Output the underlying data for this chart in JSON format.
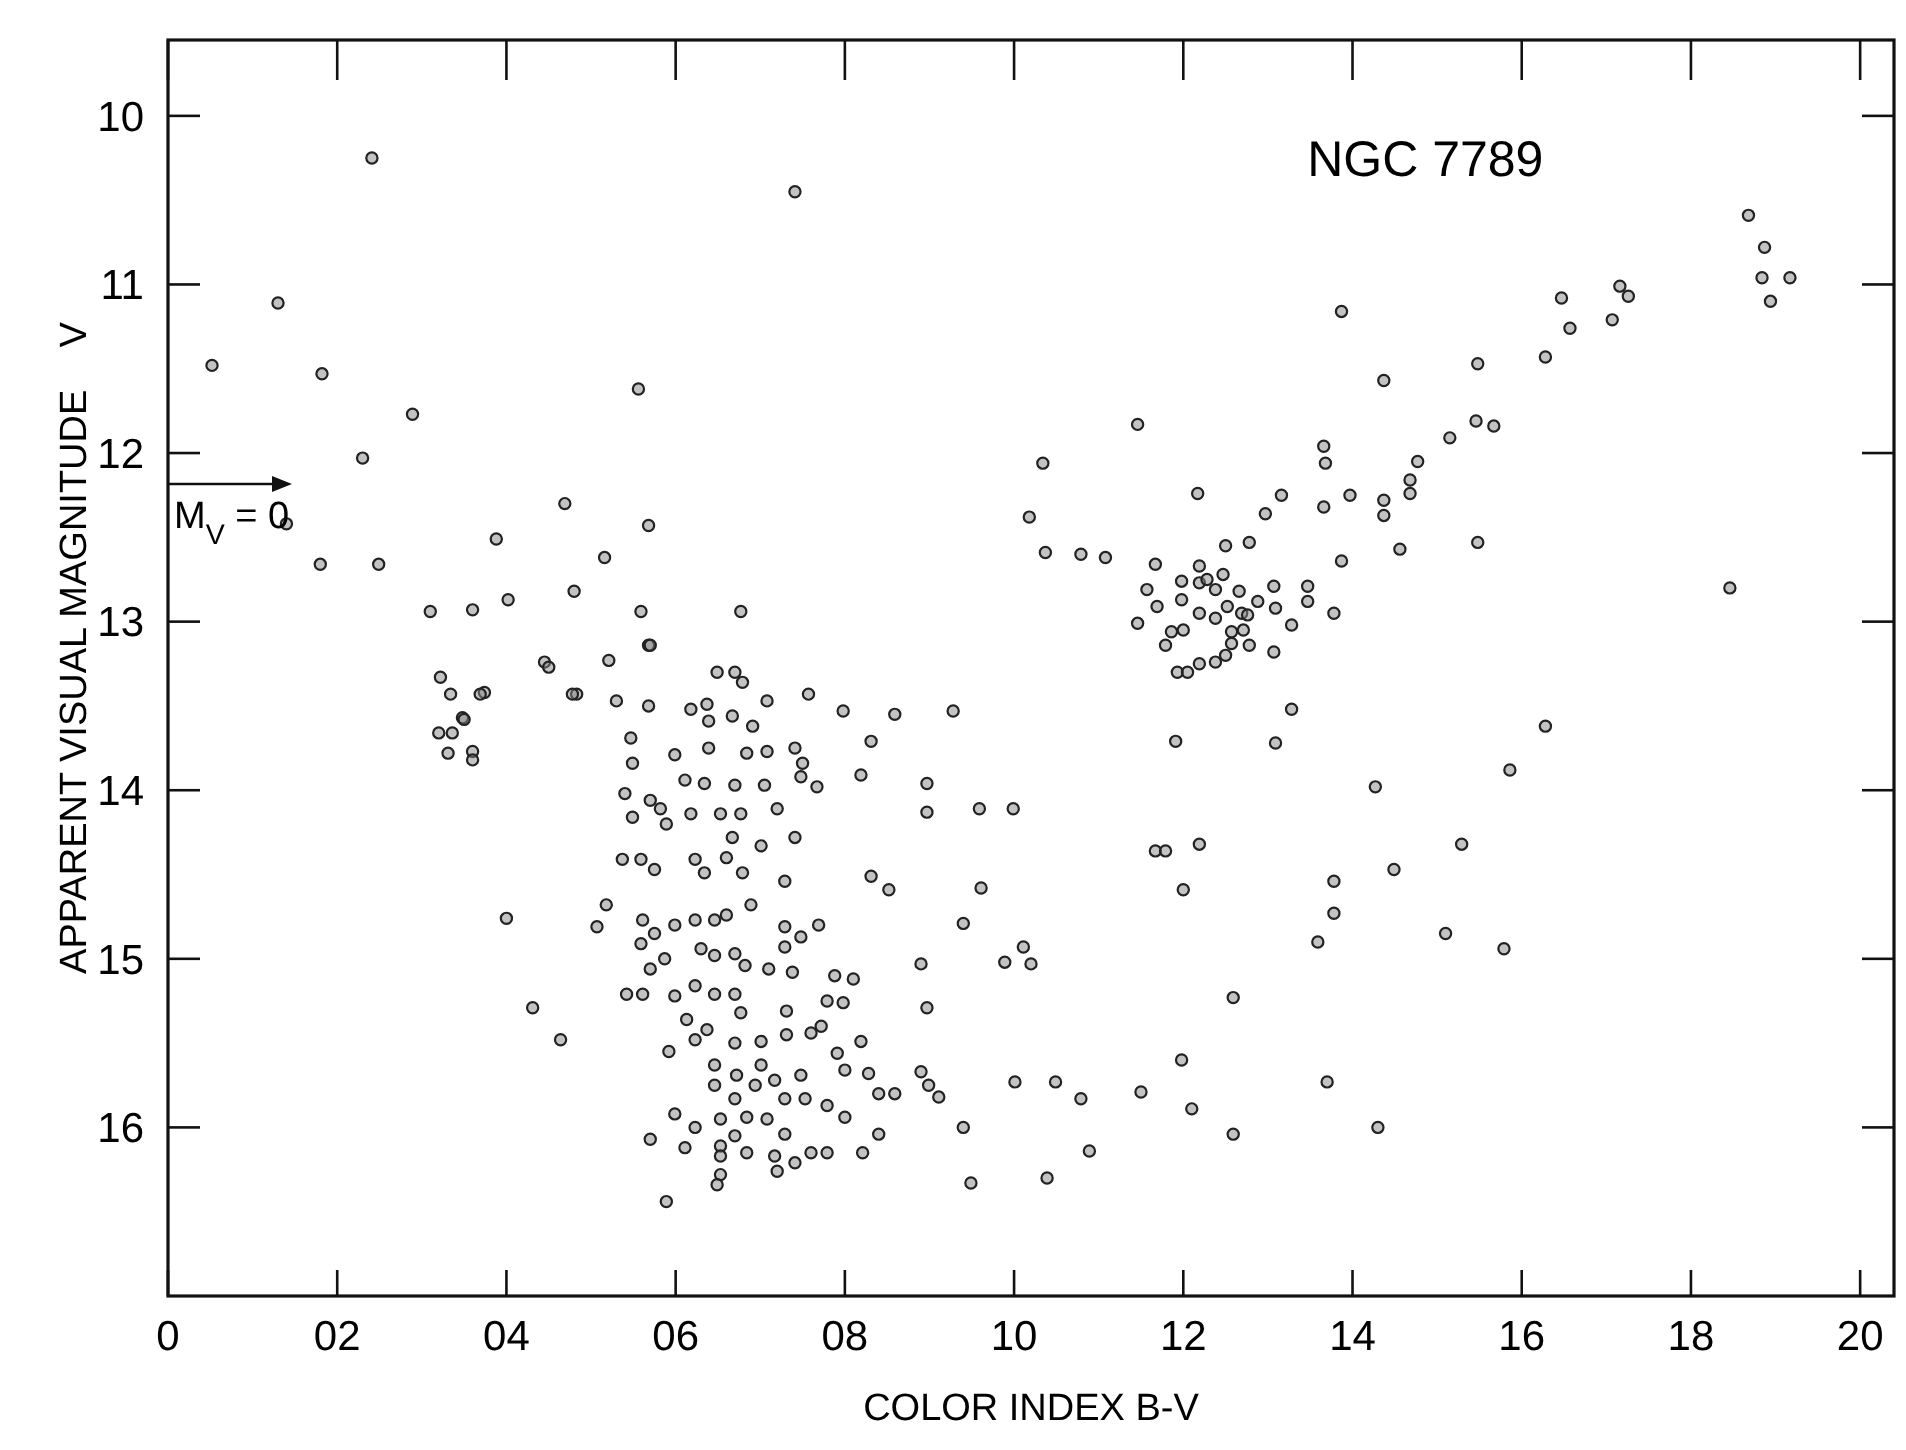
{
  "chart_data": {
    "type": "scatter",
    "xlabel": "COLOR INDEX B-V",
    "ylabel": "APPARENT VISUAL MAGNITUDE    V",
    "annotations": [
      "NGC 7789",
      "M$_{V}$ = 0"
    ],
    "xlim": [
      0,
      20.4
    ],
    "ylim": [
      17.0,
      9.55
    ],
    "xticks": [
      0,
      {
        "value": 2,
        "label": "02"
      },
      {
        "value": 4,
        "label": "04"
      },
      {
        "value": 6,
        "label": "06"
      },
      {
        "value": 8,
        "label": "08"
      },
      10,
      12,
      14,
      16,
      18,
      20
    ],
    "yticks": [
      10,
      11,
      12,
      13,
      14,
      15,
      16
    ],
    "grid": false,
    "marker": "circle",
    "series": [
      {
        "color": "#888888",
        "x": [
          0.52,
          1.3,
          1.82,
          2.41,
          2.3,
          2.89,
          1.8,
          1.4,
          2.49,
          3.1,
          3.88,
          4.02,
          3.6,
          3.22,
          3.34,
          3.74,
          3.48,
          3.6,
          3.36,
          4.45,
          4.69,
          4.8,
          5.16,
          4.83,
          5.21,
          7.41,
          5.56,
          5.68,
          6.77,
          5.59,
          5.68,
          5.7,
          4.5,
          6.49,
          6.7,
          6.79,
          3.69,
          4.78,
          5.3,
          5.68,
          6.18,
          6.37,
          6.39,
          6.67,
          6.91,
          7.08,
          7.57,
          7.98,
          8.59,
          9.28,
          3.5,
          3.2,
          3.31,
          3.6,
          5.47,
          5.49,
          5.99,
          6.39,
          6.84,
          7.08,
          7.41,
          7.5,
          8.31,
          8.19,
          7.48,
          7.67,
          6.11,
          6.34,
          6.7,
          7.05,
          5.4,
          5.7,
          5.82,
          6.18,
          6.53,
          6.77,
          7.2,
          8.97,
          8.97,
          9.59,
          5.49,
          5.89,
          7.41,
          7.01,
          6.67,
          5.37,
          5.59,
          5.75,
          6.23,
          6.34,
          6.6,
          6.79,
          7.29,
          8.31,
          8.52,
          9.61,
          4.0,
          5.07,
          5.18,
          5.61,
          5.75,
          5.99,
          6.23,
          6.46,
          6.6,
          6.89,
          7.29,
          7.48,
          7.69,
          9.4,
          5.59,
          5.87,
          6.3,
          6.46,
          6.7,
          6.82,
          7.1,
          7.29,
          7.38,
          7.88,
          8.1,
          8.9,
          5.7,
          5.42,
          5.61,
          5.99,
          6.23,
          6.46,
          6.7,
          4.31,
          4.64,
          6.13,
          6.37,
          6.77,
          7.31,
          7.79,
          7.98,
          8.97,
          6.23,
          6.7,
          7.01,
          7.31,
          7.6,
          7.72,
          7.91,
          8.19,
          5.92,
          6.46,
          6.72,
          7.01,
          7.17,
          7.48,
          8.0,
          8.28,
          8.9,
          8.99,
          9.11,
          8.59,
          8.4,
          6.46,
          6.7,
          6.94,
          7.29,
          7.53,
          7.79,
          8.0,
          5.99,
          6.23,
          6.53,
          6.84,
          7.08,
          7.29,
          6.7,
          6.53,
          6.84,
          7.17,
          7.41,
          7.6,
          7.79,
          8.21,
          8.4,
          9.4,
          5.7,
          6.11,
          6.53,
          6.53,
          6.49,
          7.2,
          5.89,
          9.49,
          13.87,
          11.46,
          10.34,
          10.18,
          10.37,
          10.79,
          11.08,
          11.67,
          12.17,
          12.5,
          12.78,
          12.97,
          13.16,
          13.66,
          13.68,
          13.66,
          13.97,
          13.87,
          14.37,
          14.37,
          14.37,
          14.56,
          14.68,
          14.68,
          14.77,
          15.15,
          15.46,
          15.67,
          15.48,
          15.48,
          16.28,
          16.47,
          16.57,
          17.07,
          17.16,
          17.26,
          18.68,
          18.87,
          18.84,
          19.17,
          18.94,
          18.46,
          11.46,
          11.57,
          11.69,
          11.79,
          11.86,
          11.98,
          11.98,
          12.0,
          11.93,
          12.05,
          12.19,
          12.19,
          12.19,
          12.19,
          12.28,
          12.38,
          12.38,
          12.38,
          12.47,
          12.5,
          12.52,
          12.57,
          12.57,
          12.66,
          12.69,
          12.71,
          12.76,
          12.78,
          12.88,
          13.07,
          13.09,
          13.07,
          13.28,
          13.47,
          13.47,
          13.78,
          13.28,
          13.09,
          11.91,
          16.28,
          15.86,
          14.27,
          9.99,
          11.67,
          11.79,
          12.19,
          12.0,
          13.78,
          14.49,
          15.29,
          13.78,
          13.59,
          15.1,
          15.79,
          10.11,
          9.89,
          10.2,
          12.59,
          11.98,
          10.01,
          10.49,
          10.79,
          11.5,
          12.1,
          13.7,
          14.3,
          12.59,
          10.89,
          10.39
        ],
        "values": [
          11.48,
          11.11,
          11.53,
          10.25,
          12.03,
          11.77,
          12.66,
          12.42,
          12.66,
          12.94,
          12.51,
          12.87,
          12.93,
          13.33,
          13.43,
          13.42,
          13.57,
          13.77,
          13.66,
          13.24,
          12.3,
          12.82,
          12.62,
          13.43,
          13.23,
          10.45,
          11.62,
          12.43,
          12.94,
          12.94,
          13.14,
          13.14,
          13.27,
          13.3,
          13.3,
          13.36,
          13.43,
          13.43,
          13.47,
          13.5,
          13.52,
          13.49,
          13.59,
          13.56,
          13.62,
          13.47,
          13.43,
          13.53,
          13.55,
          13.53,
          13.58,
          13.66,
          13.78,
          13.82,
          13.69,
          13.84,
          13.79,
          13.75,
          13.78,
          13.77,
          13.75,
          13.84,
          13.71,
          13.91,
          13.92,
          13.98,
          13.94,
          13.96,
          13.97,
          13.97,
          14.02,
          14.06,
          14.11,
          14.14,
          14.14,
          14.14,
          14.11,
          13.96,
          14.13,
          14.11,
          14.16,
          14.2,
          14.28,
          14.33,
          14.28,
          14.41,
          14.41,
          14.47,
          14.41,
          14.49,
          14.4,
          14.49,
          14.54,
          14.51,
          14.59,
          14.58,
          14.76,
          14.81,
          14.68,
          14.77,
          14.85,
          14.8,
          14.77,
          14.77,
          14.74,
          14.68,
          14.81,
          14.87,
          14.8,
          14.79,
          14.91,
          15.0,
          14.94,
          14.98,
          14.97,
          15.04,
          15.06,
          14.93,
          15.08,
          15.1,
          15.12,
          15.03,
          15.06,
          15.21,
          15.21,
          15.22,
          15.16,
          15.21,
          15.21,
          15.29,
          15.48,
          15.36,
          15.42,
          15.32,
          15.31,
          15.25,
          15.26,
          15.29,
          15.48,
          15.5,
          15.49,
          15.45,
          15.44,
          15.4,
          15.56,
          15.49,
          15.55,
          15.63,
          15.69,
          15.63,
          15.72,
          15.69,
          15.66,
          15.68,
          15.67,
          15.75,
          15.82,
          15.8,
          15.8,
          15.75,
          15.83,
          15.75,
          15.83,
          15.83,
          15.87,
          15.94,
          15.92,
          16.0,
          15.95,
          15.94,
          15.95,
          16.04,
          16.05,
          16.11,
          16.15,
          16.17,
          16.21,
          16.15,
          16.15,
          16.15,
          16.04,
          16.0,
          16.07,
          16.12,
          16.17,
          16.28,
          16.34,
          16.26,
          16.44,
          16.33,
          11.16,
          11.83,
          12.06,
          12.38,
          12.59,
          12.6,
          12.62,
          12.66,
          12.24,
          12.55,
          12.53,
          12.36,
          12.25,
          11.96,
          12.06,
          12.32,
          12.25,
          12.64,
          11.57,
          12.28,
          12.37,
          12.57,
          12.16,
          12.24,
          12.05,
          11.91,
          11.81,
          11.84,
          11.47,
          12.53,
          11.43,
          11.08,
          11.26,
          11.21,
          11.01,
          11.07,
          10.59,
          10.78,
          10.96,
          10.96,
          11.1,
          12.8,
          13.01,
          12.81,
          12.91,
          13.14,
          13.06,
          12.87,
          12.76,
          13.05,
          13.3,
          13.3,
          12.67,
          12.77,
          12.95,
          13.25,
          12.75,
          12.81,
          12.98,
          13.24,
          12.72,
          13.2,
          12.91,
          13.06,
          13.13,
          12.82,
          12.95,
          13.05,
          12.96,
          13.14,
          12.88,
          12.79,
          12.92,
          13.18,
          13.02,
          12.79,
          12.88,
          12.95,
          13.52,
          13.72,
          13.71,
          13.62,
          13.88,
          13.98,
          14.11,
          14.36,
          14.36,
          14.32,
          14.59,
          14.54,
          14.47,
          14.32,
          14.73,
          14.9,
          14.85,
          14.94,
          14.93,
          15.02,
          15.03,
          15.23,
          15.6,
          15.73,
          15.73,
          15.83,
          15.79,
          15.89,
          15.73,
          16.0,
          16.04,
          16.14,
          16.3
        ]
      }
    ]
  }
}
